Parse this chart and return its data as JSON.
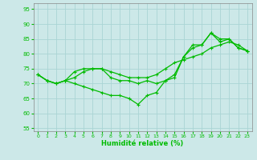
{
  "xlabel": "Humidité relative (%)",
  "xlim": [
    -0.5,
    23.5
  ],
  "ylim": [
    54,
    97
  ],
  "yticks": [
    55,
    60,
    65,
    70,
    75,
    80,
    85,
    90,
    95
  ],
  "xticks": [
    0,
    1,
    2,
    3,
    4,
    5,
    6,
    7,
    8,
    9,
    10,
    11,
    12,
    13,
    14,
    15,
    16,
    17,
    18,
    19,
    20,
    21,
    22,
    23
  ],
  "background_color": "#cce8e8",
  "grid_color": "#aad4d4",
  "line_color": "#00bb00",
  "series1": [
    73,
    71,
    70,
    71,
    72,
    74,
    75,
    75,
    74,
    73,
    72,
    72,
    72,
    73,
    75,
    77,
    78,
    79,
    80,
    82,
    83,
    84,
    83,
    81
  ],
  "series2": [
    73,
    71,
    70,
    71,
    74,
    75,
    75,
    75,
    72,
    71,
    71,
    70,
    71,
    70,
    71,
    72,
    79,
    83,
    83,
    87,
    85,
    85,
    82,
    81
  ],
  "series3": [
    73,
    71,
    70,
    71,
    70,
    69,
    68,
    67,
    66,
    66,
    65,
    63,
    66,
    67,
    71,
    73,
    79,
    82,
    83,
    87,
    84,
    85,
    82,
    81
  ]
}
